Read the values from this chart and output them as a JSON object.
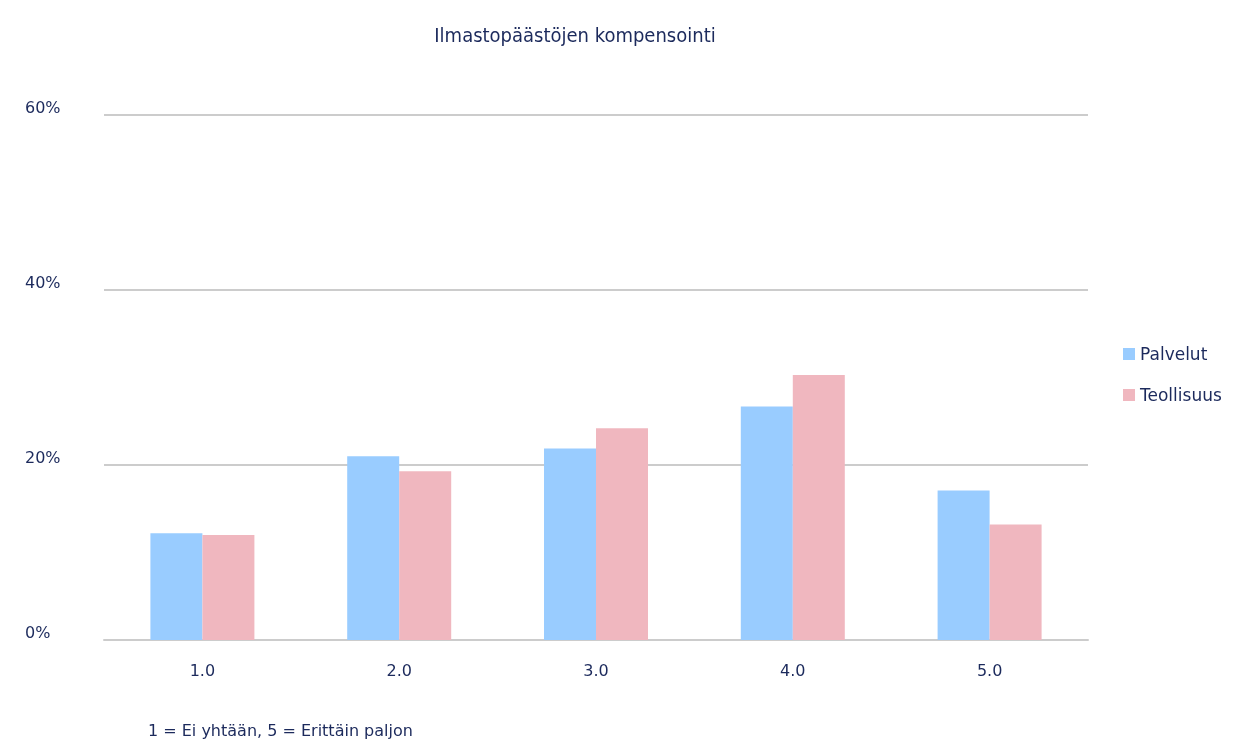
{
  "chart_data": {
    "type": "bar",
    "title": "Ilmastopäästöjen kompensointi",
    "categories": [
      "1.0",
      "2.0",
      "3.0",
      "4.0",
      "5.0"
    ],
    "series": [
      {
        "name": "Palvelut",
        "color": "#99ccff",
        "values": [
          12.2,
          21.0,
          21.9,
          26.7,
          17.1
        ]
      },
      {
        "name": "Teollisuus",
        "color": "#f0b7bf",
        "values": [
          12.0,
          19.3,
          24.2,
          30.3,
          13.2
        ]
      }
    ],
    "ylim": [
      0,
      60
    ],
    "yticks": [
      {
        "value": 0,
        "label": "0%"
      },
      {
        "value": 20,
        "label": "20%"
      },
      {
        "value": 40,
        "label": "40%"
      },
      {
        "value": 60,
        "label": "60%"
      }
    ],
    "grid": "y",
    "legend": "right",
    "annotations": [
      "1 = Ei yhtään, 5 = Erittäin paljon"
    ]
  }
}
